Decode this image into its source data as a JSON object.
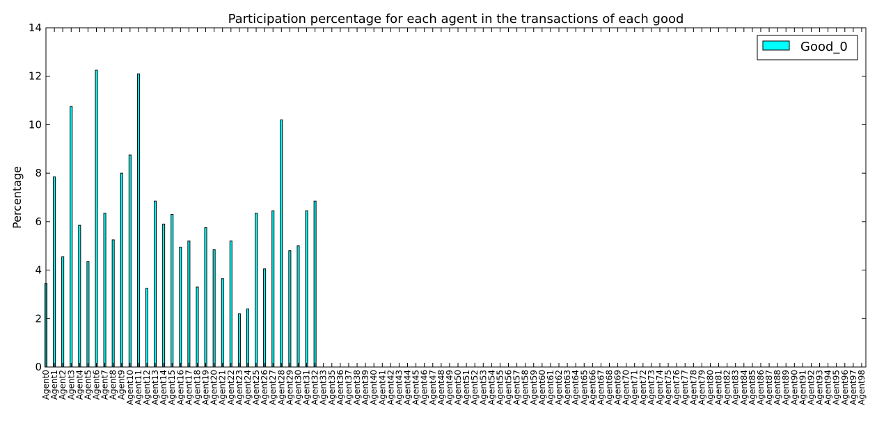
{
  "chart_data": {
    "type": "bar",
    "title": "Participation percentage for each agent in the transactions of each good",
    "xlabel": "",
    "ylabel": "Percentage",
    "ylim": [
      0,
      14
    ],
    "yticks": [
      "0",
      "2",
      "4",
      "6",
      "8",
      "10",
      "12",
      "14"
    ],
    "grid": false,
    "legend_position": "top-right",
    "categories": [
      "Agent0",
      "Agent1",
      "Agent2",
      "Agent3",
      "Agent4",
      "Agent5",
      "Agent6",
      "Agent7",
      "Agent8",
      "Agent9",
      "Agent10",
      "Agent11",
      "Agent12",
      "Agent13",
      "Agent14",
      "Agent15",
      "Agent16",
      "Agent17",
      "Agent18",
      "Agent19",
      "Agent20",
      "Agent21",
      "Agent22",
      "Agent23",
      "Agent24",
      "Agent25",
      "Agent26",
      "Agent27",
      "Agent28",
      "Agent29",
      "Agent30",
      "Agent31",
      "Agent32",
      "Agent33",
      "Agent35",
      "Agent36",
      "Agent37",
      "Agent38",
      "Agent39",
      "Agent40",
      "Agent41",
      "Agent42",
      "Agent43",
      "Agent44",
      "Agent45",
      "Agent46",
      "Agent47",
      "Agent48",
      "Agent49",
      "Agent50",
      "Agent51",
      "Agent52",
      "Agent53",
      "Agent54",
      "Agent55",
      "Agent56",
      "Agent57",
      "Agent58",
      "Agent59",
      "Agent60",
      "Agent61",
      "Agent62",
      "Agent63",
      "Agent64",
      "Agent65",
      "Agent66",
      "Agent67",
      "Agent68",
      "Agent69",
      "Agent70",
      "Agent71",
      "Agent72",
      "Agent73",
      "Agent74",
      "Agent75",
      "Agent76",
      "Agent77",
      "Agent78",
      "Agent79",
      "Agent80",
      "Agent81",
      "Agent82",
      "Agent83",
      "Agent84",
      "Agent85",
      "Agent86",
      "Agent87",
      "Agent88",
      "Agent89",
      "Agent90",
      "Agent91",
      "Agent92",
      "Agent93",
      "Agent94",
      "Agent95",
      "Agent96",
      "Agent97",
      "Agent98"
    ],
    "series": [
      {
        "name": "Good_0",
        "color": "#00ffff",
        "values": [
          3.45,
          7.85,
          4.55,
          10.75,
          5.85,
          4.35,
          12.25,
          6.35,
          5.25,
          8.0,
          8.75,
          12.1,
          3.25,
          6.85,
          5.9,
          6.3,
          4.95,
          5.2,
          3.3,
          5.75,
          4.85,
          3.65,
          5.2,
          2.2,
          2.4,
          6.35,
          4.05,
          6.45,
          10.2,
          4.8,
          5.0,
          6.45,
          6.85,
          0,
          0,
          0,
          0,
          0,
          0,
          0,
          0,
          0,
          0,
          0,
          0,
          0,
          0,
          0,
          0,
          0,
          0,
          0,
          0,
          0,
          0,
          0,
          0,
          0,
          0,
          0,
          0,
          0,
          0,
          0,
          0,
          0,
          0,
          0,
          0,
          0,
          0,
          0,
          0,
          0,
          0,
          0,
          0,
          0,
          0,
          0,
          0,
          0,
          0,
          0,
          0,
          0,
          0,
          0,
          0,
          0,
          0,
          0,
          0,
          0,
          0,
          0,
          0,
          0
        ]
      }
    ]
  }
}
